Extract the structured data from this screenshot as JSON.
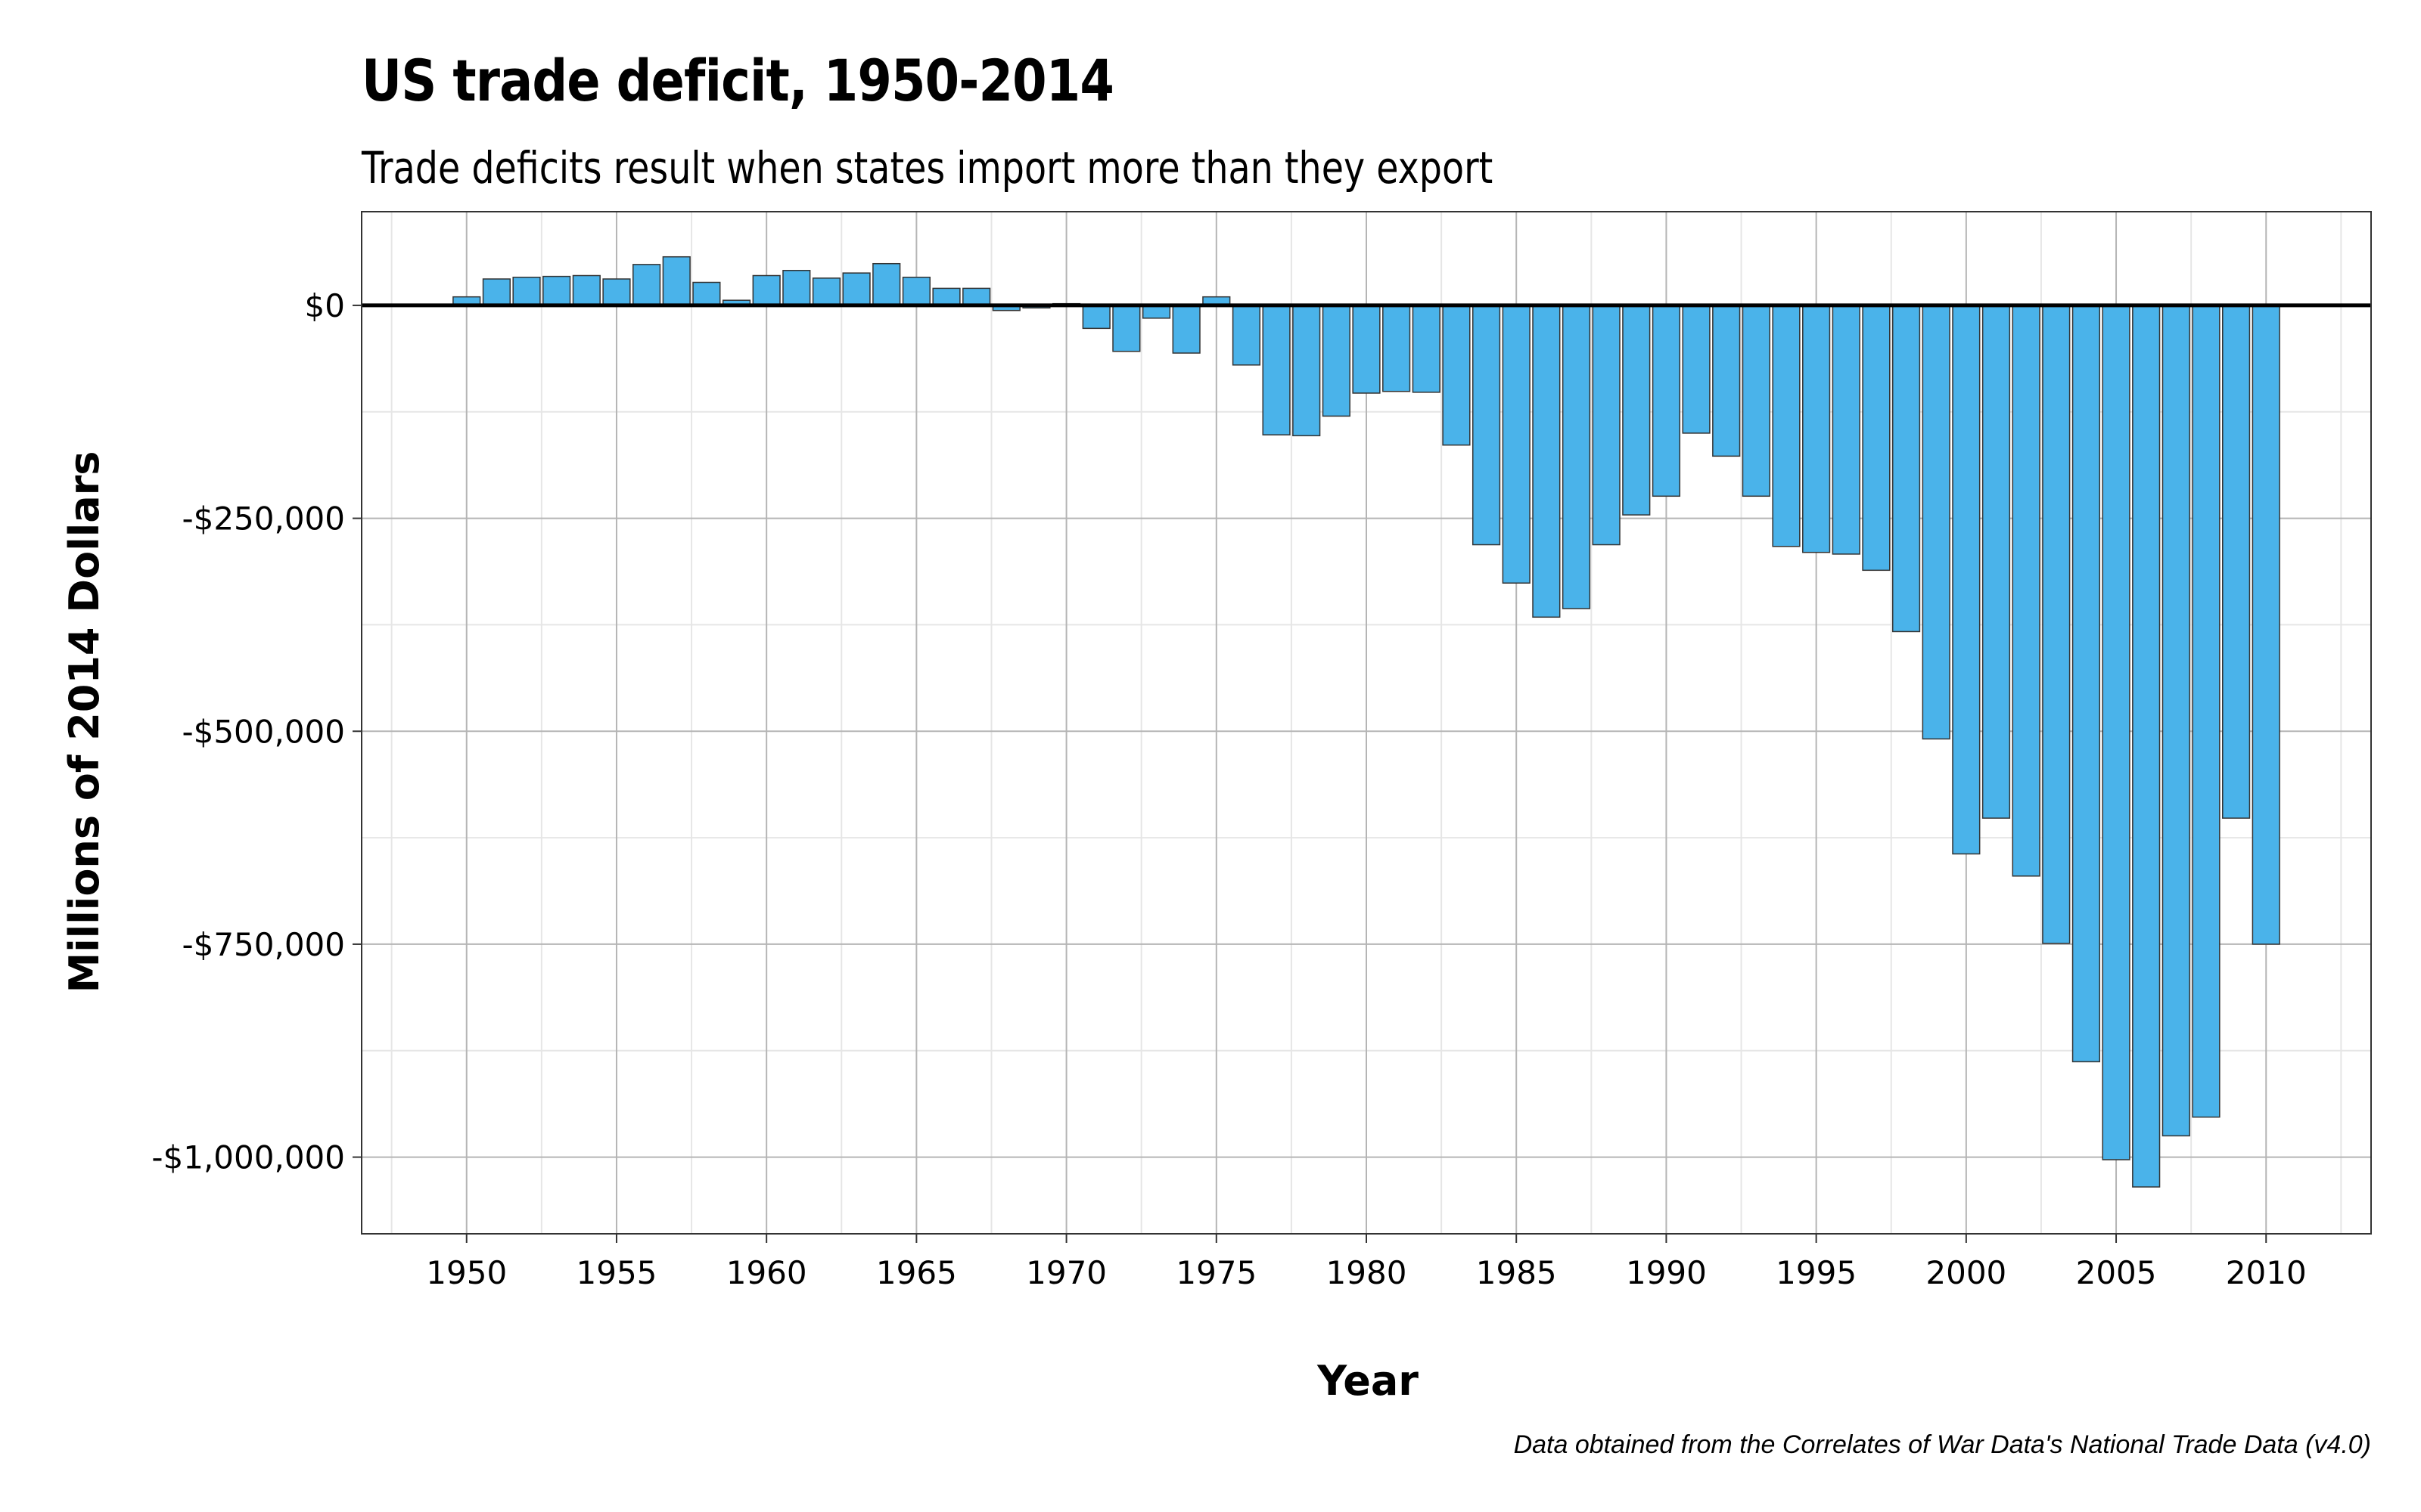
{
  "title": "US trade deficit, 1950-2014",
  "subtitle": "Trade deficits result when states import more than they export",
  "caption": "Data obtained from the Correlates of War Data's National Trade Data (v4.0)",
  "colors": {
    "bar_fill": "#4ab3ea",
    "bar_stroke": "#333333",
    "zero_line": "#000000",
    "grid_major": "#b5b5b5",
    "grid_minor": "#e6e6e6"
  },
  "chart_data": {
    "type": "bar",
    "title": "US trade deficit, 1950-2014",
    "subtitle": "Trade deficits result when states import more than they export",
    "xlabel": "Year",
    "ylabel": "Millions of 2014 Dollars",
    "xlim": [
      1946.5,
      2013.5
    ],
    "ylim": [
      -1090000,
      110000
    ],
    "x_ticks": [
      1950,
      1955,
      1960,
      1965,
      1970,
      1975,
      1980,
      1985,
      1990,
      1995,
      2000,
      2005,
      2010
    ],
    "x_tick_labels": [
      "1950",
      "1955",
      "1960",
      "1965",
      "1970",
      "1975",
      "1980",
      "1985",
      "1990",
      "1995",
      "2000",
      "2005",
      "2010"
    ],
    "y_ticks": [
      0,
      -250000,
      -500000,
      -750000,
      -1000000
    ],
    "y_tick_labels": [
      "$0",
      "-$250,000",
      "-$500,000",
      "-$750,000",
      "-$1,000,000"
    ],
    "grid": true,
    "categories": [
      1950,
      1951,
      1952,
      1953,
      1954,
      1955,
      1956,
      1957,
      1958,
      1959,
      1960,
      1961,
      1962,
      1963,
      1964,
      1965,
      1966,
      1967,
      1968,
      1969,
      1970,
      1971,
      1972,
      1973,
      1974,
      1975,
      1976,
      1977,
      1978,
      1979,
      1980,
      1981,
      1982,
      1983,
      1984,
      1985,
      1986,
      1987,
      1988,
      1989,
      1990,
      1991,
      1992,
      1993,
      1994,
      1995,
      1996,
      1997,
      1998,
      1999,
      2000,
      2001,
      2002,
      2003,
      2004,
      2005,
      2006,
      2007,
      2008,
      2009,
      2010
    ],
    "values": [
      10000,
      31000,
      33000,
      34000,
      35000,
      31000,
      48000,
      57000,
      27000,
      6000,
      35000,
      41000,
      32000,
      38000,
      49000,
      33000,
      20000,
      20000,
      -6000,
      -3000,
      2000,
      -27000,
      -54000,
      -15000,
      -56000,
      10000,
      -70000,
      -152000,
      -153000,
      -130000,
      -103000,
      -101000,
      -102000,
      -164000,
      -281000,
      -326000,
      -366000,
      -356000,
      -281000,
      -246000,
      -224000,
      -150000,
      -177000,
      -224000,
      -283000,
      -290000,
      -292000,
      -311000,
      -383000,
      -509000,
      -644000,
      -602000,
      -670000,
      -749000,
      -888000,
      -1003000,
      -1035000,
      -975000,
      -953000,
      -602000,
      -750000
    ]
  }
}
